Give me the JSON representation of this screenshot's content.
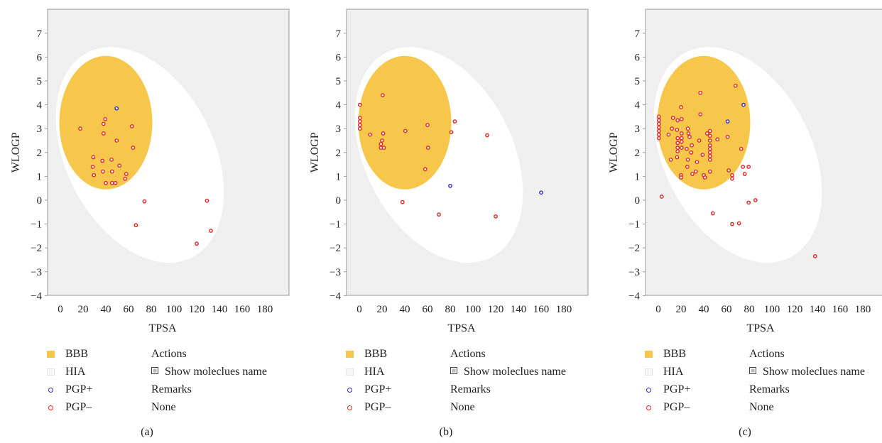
{
  "colors": {
    "bbb": "#f6c74b",
    "hia": "#ffffff",
    "pgp_plus": "#2e2ec8",
    "pgp_minus": "#e02828",
    "plot_background": "#efefef"
  },
  "legend": {
    "bbb": "BBB",
    "hia": "HIA",
    "pgp_plus": "PGP+",
    "pgp_minus": "PGP–",
    "actions_heading": "Actions",
    "show_names_label": "Show moleclues name",
    "remarks_heading": "Remarks",
    "remarks_value": "None"
  },
  "chart_data": [
    {
      "type": "scatter",
      "caption": "(a)",
      "xlabel": "TPSA",
      "ylabel": "WLOGP",
      "xlim": [
        -10,
        200
      ],
      "ylim": [
        -4,
        8
      ],
      "xticks": [
        "0",
        "20",
        "40",
        "60",
        "80",
        "100",
        "120",
        "140",
        "160",
        "180"
      ],
      "yticks": [
        "−4",
        "−3",
        "−2",
        "−1",
        "0",
        "1",
        "2",
        "3",
        "4",
        "5",
        "6",
        "7"
      ],
      "regions": {
        "bbb": "yolk",
        "hia": "egg white"
      },
      "series": [
        {
          "name": "PGP+",
          "points": [
            [
              49.5,
              3.85
            ]
          ]
        },
        {
          "name": "PGP–",
          "points": [
            [
              17.5,
              3.0
            ],
            [
              39.5,
              3.4
            ],
            [
              38,
              3.2
            ],
            [
              38,
              2.8
            ],
            [
              49.5,
              2.5
            ],
            [
              63,
              3.1
            ],
            [
              64,
              2.2
            ],
            [
              29,
              1.8
            ],
            [
              37,
              1.65
            ],
            [
              45,
              1.7
            ],
            [
              52,
              1.45
            ],
            [
              28.5,
              1.4
            ],
            [
              37.5,
              1.2
            ],
            [
              45.5,
              1.2
            ],
            [
              58,
              1.1
            ],
            [
              29.5,
              1.05
            ],
            [
              57,
              0.9
            ],
            [
              40,
              0.72
            ],
            [
              45.5,
              0.72
            ],
            [
              48.5,
              0.72
            ],
            [
              74,
              -0.05
            ],
            [
              66.5,
              -1.05
            ],
            [
              120,
              -1.82
            ],
            [
              129,
              -0.02
            ],
            [
              132.5,
              -1.28
            ]
          ]
        }
      ]
    },
    {
      "type": "scatter",
      "caption": "(b)",
      "xlabel": "TPSA",
      "ylabel": "WLOGP",
      "xlim": [
        -10,
        200
      ],
      "ylim": [
        -4,
        8
      ],
      "xticks": [
        "0",
        "20",
        "40",
        "60",
        "80",
        "100",
        "120",
        "140",
        "160",
        "180"
      ],
      "yticks": [
        "−4",
        "−3",
        "−2",
        "−1",
        "0",
        "1",
        "2",
        "3",
        "4",
        "5",
        "6",
        "7"
      ],
      "regions": {
        "bbb": "yolk",
        "hia": "egg white"
      },
      "series": [
        {
          "name": "PGP+",
          "points": [
            [
              80,
              0.6
            ],
            [
              160,
              0.32
            ]
          ]
        },
        {
          "name": "PGP–",
          "points": [
            [
              20.5,
              4.4
            ],
            [
              0.5,
              4.0
            ],
            [
              0.5,
              3.45
            ],
            [
              0.5,
              3.3
            ],
            [
              0.5,
              3.15
            ],
            [
              0.5,
              3.0
            ],
            [
              9.5,
              2.75
            ],
            [
              21,
              2.8
            ],
            [
              20,
              2.5
            ],
            [
              19,
              2.35
            ],
            [
              19,
              2.2
            ],
            [
              21.5,
              2.2
            ],
            [
              40.5,
              2.9
            ],
            [
              60,
              3.15
            ],
            [
              60.5,
              2.2
            ],
            [
              58,
              1.3
            ],
            [
              81,
              2.85
            ],
            [
              84,
              3.3
            ],
            [
              112.5,
              2.72
            ],
            [
              38,
              -0.08
            ],
            [
              70,
              -0.6
            ],
            [
              120,
              -0.68
            ]
          ]
        }
      ]
    },
    {
      "type": "scatter",
      "caption": "(c)",
      "xlabel": "TPSA",
      "ylabel": "WLOGP",
      "xlim": [
        -10,
        200
      ],
      "ylim": [
        -4,
        8
      ],
      "xticks": [
        "0",
        "20",
        "40",
        "60",
        "80",
        "100",
        "120",
        "140",
        "160",
        "180"
      ],
      "yticks": [
        "−4",
        "−3",
        "−2",
        "−1",
        "0",
        "1",
        "2",
        "3",
        "4",
        "5",
        "6",
        "7"
      ],
      "regions": {
        "bbb": "yolk",
        "hia": "egg white"
      },
      "series": [
        {
          "name": "PGP+",
          "points": [
            [
              61,
              3.3
            ],
            [
              75,
              4.0
            ]
          ]
        },
        {
          "name": "PGP–",
          "points": [
            [
              0.5,
              3.5
            ],
            [
              0.5,
              3.35
            ],
            [
              0.5,
              3.2
            ],
            [
              0.5,
              3.05
            ],
            [
              0.5,
              2.9
            ],
            [
              0.5,
              2.75
            ],
            [
              0.5,
              2.6
            ],
            [
              3,
              0.15
            ],
            [
              9,
              2.75
            ],
            [
              11,
              1.7
            ],
            [
              12,
              3.0
            ],
            [
              13,
              3.45
            ],
            [
              17,
              3.35
            ],
            [
              16.5,
              2.95
            ],
            [
              17,
              2.6
            ],
            [
              17,
              2.4
            ],
            [
              17,
              2.2
            ],
            [
              17,
              2.05
            ],
            [
              16.5,
              1.8
            ],
            [
              20,
              3.9
            ],
            [
              20.5,
              3.4
            ],
            [
              20.5,
              2.8
            ],
            [
              20.5,
              2.6
            ],
            [
              20.5,
              2.45
            ],
            [
              20.5,
              2.2
            ],
            [
              20,
              1.05
            ],
            [
              20,
              0.95
            ],
            [
              25,
              2.15
            ],
            [
              26,
              1.7
            ],
            [
              25.5,
              1.4
            ],
            [
              26,
              3.0
            ],
            [
              26.5,
              2.8
            ],
            [
              27.5,
              2.65
            ],
            [
              29,
              2.0
            ],
            [
              29.5,
              2.3
            ],
            [
              30,
              1.1
            ],
            [
              33,
              1.2
            ],
            [
              34,
              1.6
            ],
            [
              36,
              2.5
            ],
            [
              37,
              3.6
            ],
            [
              37,
              4.5
            ],
            [
              39,
              1.9
            ],
            [
              40,
              1.05
            ],
            [
              41,
              0.95
            ],
            [
              43,
              2.8
            ],
            [
              45.5,
              2.9
            ],
            [
              45.5,
              2.7
            ],
            [
              45.5,
              2.5
            ],
            [
              45.5,
              2.3
            ],
            [
              45.5,
              2.15
            ],
            [
              45.5,
              2.0
            ],
            [
              45.5,
              1.85
            ],
            [
              45.5,
              1.7
            ],
            [
              45.5,
              1.2
            ],
            [
              48,
              -0.55
            ],
            [
              52,
              2.55
            ],
            [
              61,
              2.65
            ],
            [
              62,
              1.25
            ],
            [
              65,
              1.05
            ],
            [
              65,
              0.9
            ],
            [
              68,
              4.8
            ],
            [
              71,
              -0.97
            ],
            [
              73,
              2.15
            ],
            [
              74.5,
              1.4
            ],
            [
              76,
              1.1
            ],
            [
              79.5,
              1.4
            ],
            [
              79.5,
              -0.1
            ],
            [
              85.5,
              0.0
            ],
            [
              65,
              -1.0
            ],
            [
              138,
              -2.35
            ]
          ]
        }
      ]
    }
  ]
}
